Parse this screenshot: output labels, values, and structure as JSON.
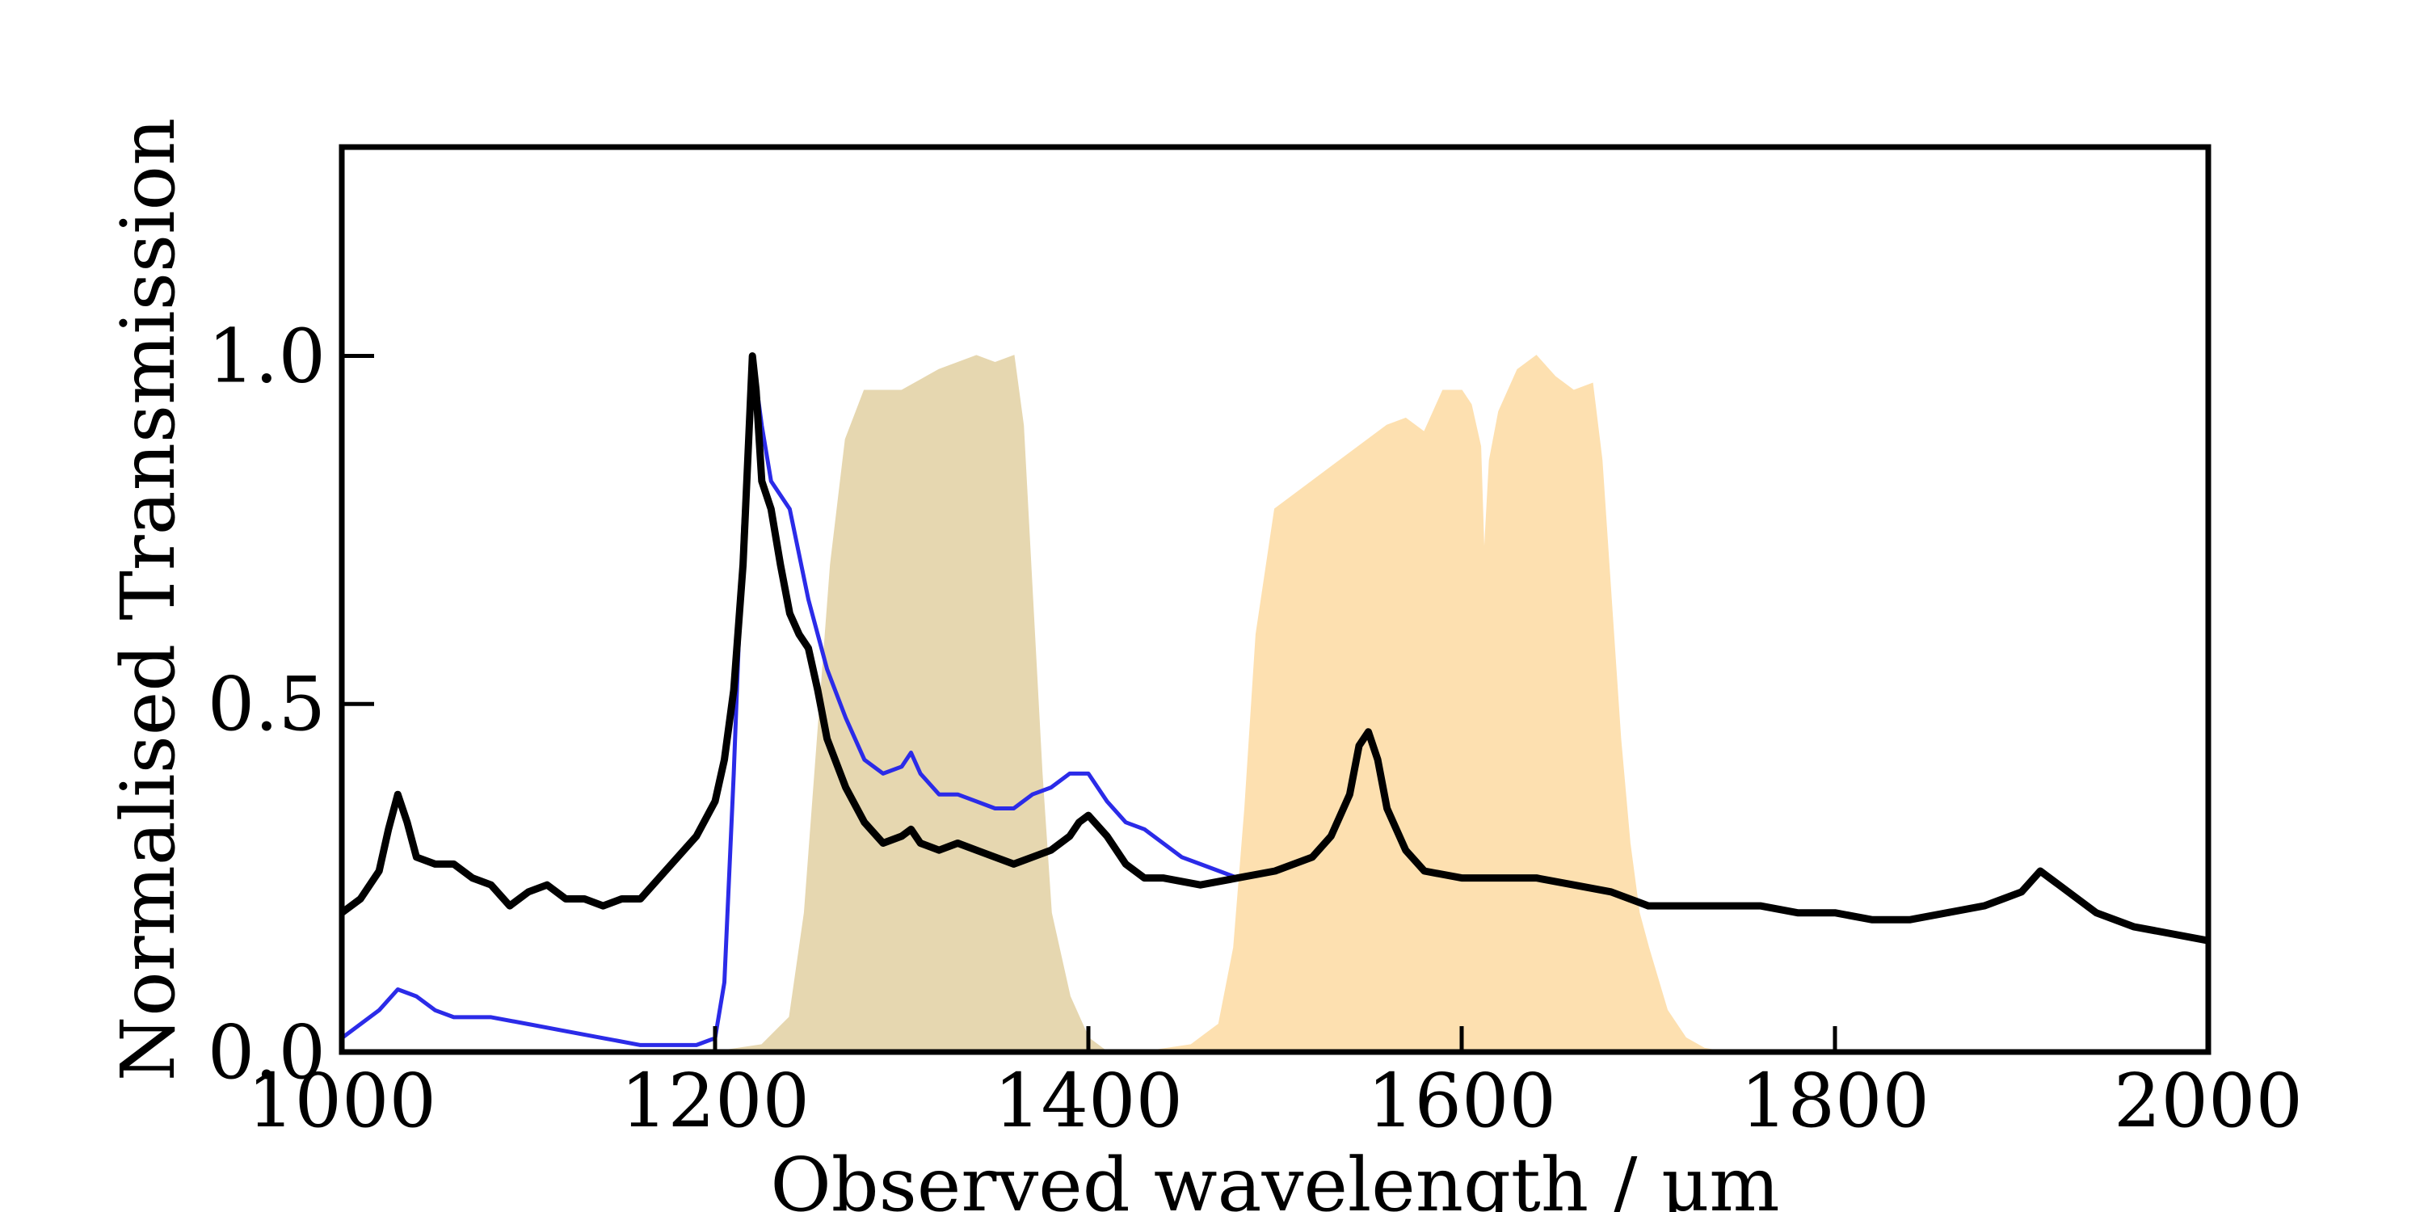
{
  "chart_data": {
    "type": "line",
    "xlabel": "Observed wavelength / μm",
    "ylabel": "Normalised Transmission",
    "xlim": [
      1000,
      2000
    ],
    "ylim": [
      0,
      1.3
    ],
    "xticks": [
      1000,
      1200,
      1400,
      1600,
      1800,
      2000
    ],
    "xtick_labels": [
      "1000",
      "1200",
      "1400",
      "1600",
      "1800",
      "2000"
    ],
    "yticks": [
      0.0,
      0.5,
      1.0
    ],
    "ytick_labels": [
      "0.0",
      "0.5",
      "1.0"
    ],
    "grid": false,
    "series": [
      {
        "kind": "filled-area",
        "color": "#e6d7b0",
        "x": [
          1200,
          1225,
          1240,
          1248,
          1255,
          1262,
          1270,
          1280,
          1300,
          1320,
          1340,
          1350,
          1360,
          1365,
          1370,
          1375,
          1380,
          1390,
          1400,
          1410
        ],
        "y": [
          0.0,
          0.01,
          0.05,
          0.2,
          0.45,
          0.7,
          0.88,
          0.95,
          0.95,
          0.98,
          1.0,
          0.99,
          1.0,
          0.9,
          0.65,
          0.4,
          0.2,
          0.08,
          0.02,
          0.0
        ]
      },
      {
        "kind": "filled-area",
        "color": "#fde0b0",
        "x": [
          1430,
          1455,
          1470,
          1478,
          1484,
          1490,
          1500,
          1520,
          1540,
          1560,
          1570,
          1580,
          1590,
          1600,
          1605,
          1610,
          1612,
          1615,
          1620,
          1630,
          1640,
          1650,
          1660,
          1670,
          1675,
          1680,
          1685,
          1690,
          1695,
          1700,
          1710,
          1720,
          1730,
          1740
        ],
        "y": [
          0.0,
          0.01,
          0.04,
          0.15,
          0.35,
          0.6,
          0.78,
          0.82,
          0.86,
          0.9,
          0.91,
          0.89,
          0.95,
          0.95,
          0.93,
          0.87,
          0.7,
          0.85,
          0.92,
          0.98,
          1.0,
          0.97,
          0.95,
          0.96,
          0.85,
          0.65,
          0.45,
          0.3,
          0.2,
          0.15,
          0.06,
          0.02,
          0.005,
          0.0
        ]
      },
      {
        "kind": "line",
        "color": "#2b2be8",
        "x": [
          1000,
          1010,
          1020,
          1030,
          1040,
          1050,
          1060,
          1080,
          1100,
          1120,
          1140,
          1160,
          1180,
          1190,
          1200,
          1205,
          1210,
          1215,
          1220,
          1225,
          1230,
          1240,
          1250,
          1260,
          1270,
          1280,
          1290,
          1300,
          1305,
          1310,
          1320,
          1330,
          1340,
          1350,
          1360,
          1370,
          1380,
          1390,
          1400,
          1410,
          1420,
          1430,
          1440,
          1450,
          1460,
          1470,
          1480
        ],
        "y": [
          0.02,
          0.04,
          0.06,
          0.09,
          0.08,
          0.06,
          0.05,
          0.05,
          0.04,
          0.03,
          0.02,
          0.01,
          0.01,
          0.01,
          0.02,
          0.1,
          0.4,
          0.75,
          1.0,
          0.9,
          0.82,
          0.78,
          0.65,
          0.55,
          0.48,
          0.42,
          0.4,
          0.41,
          0.43,
          0.4,
          0.37,
          0.37,
          0.36,
          0.35,
          0.35,
          0.37,
          0.38,
          0.4,
          0.4,
          0.36,
          0.33,
          0.32,
          0.3,
          0.28,
          0.27,
          0.26,
          0.25
        ]
      },
      {
        "kind": "line",
        "color": "#000000",
        "x": [
          1000,
          1010,
          1020,
          1025,
          1030,
          1035,
          1040,
          1050,
          1060,
          1070,
          1080,
          1090,
          1100,
          1110,
          1120,
          1130,
          1140,
          1150,
          1160,
          1170,
          1180,
          1190,
          1200,
          1205,
          1210,
          1215,
          1218,
          1220,
          1222,
          1225,
          1230,
          1235,
          1240,
          1245,
          1250,
          1255,
          1260,
          1270,
          1280,
          1290,
          1300,
          1305,
          1310,
          1320,
          1330,
          1340,
          1350,
          1360,
          1370,
          1380,
          1390,
          1395,
          1400,
          1410,
          1420,
          1430,
          1440,
          1460,
          1480,
          1500,
          1520,
          1530,
          1540,
          1545,
          1550,
          1555,
          1560,
          1570,
          1580,
          1600,
          1620,
          1640,
          1660,
          1680,
          1700,
          1720,
          1740,
          1760,
          1780,
          1800,
          1820,
          1840,
          1860,
          1880,
          1890,
          1900,
          1910,
          1920,
          1940,
          1960,
          1980,
          2000
        ],
        "y": [
          0.2,
          0.22,
          0.26,
          0.32,
          0.37,
          0.33,
          0.28,
          0.27,
          0.27,
          0.25,
          0.24,
          0.21,
          0.23,
          0.24,
          0.22,
          0.22,
          0.21,
          0.22,
          0.22,
          0.25,
          0.28,
          0.31,
          0.36,
          0.42,
          0.52,
          0.7,
          0.88,
          1.0,
          0.95,
          0.82,
          0.78,
          0.7,
          0.63,
          0.6,
          0.58,
          0.52,
          0.45,
          0.38,
          0.33,
          0.3,
          0.31,
          0.32,
          0.3,
          0.29,
          0.3,
          0.29,
          0.28,
          0.27,
          0.28,
          0.29,
          0.31,
          0.33,
          0.34,
          0.31,
          0.27,
          0.25,
          0.25,
          0.24,
          0.25,
          0.26,
          0.28,
          0.31,
          0.37,
          0.44,
          0.46,
          0.42,
          0.35,
          0.29,
          0.26,
          0.25,
          0.25,
          0.25,
          0.24,
          0.23,
          0.21,
          0.21,
          0.21,
          0.21,
          0.2,
          0.2,
          0.19,
          0.19,
          0.2,
          0.21,
          0.22,
          0.23,
          0.26,
          0.24,
          0.2,
          0.18,
          0.17,
          0.16
        ]
      }
    ]
  }
}
